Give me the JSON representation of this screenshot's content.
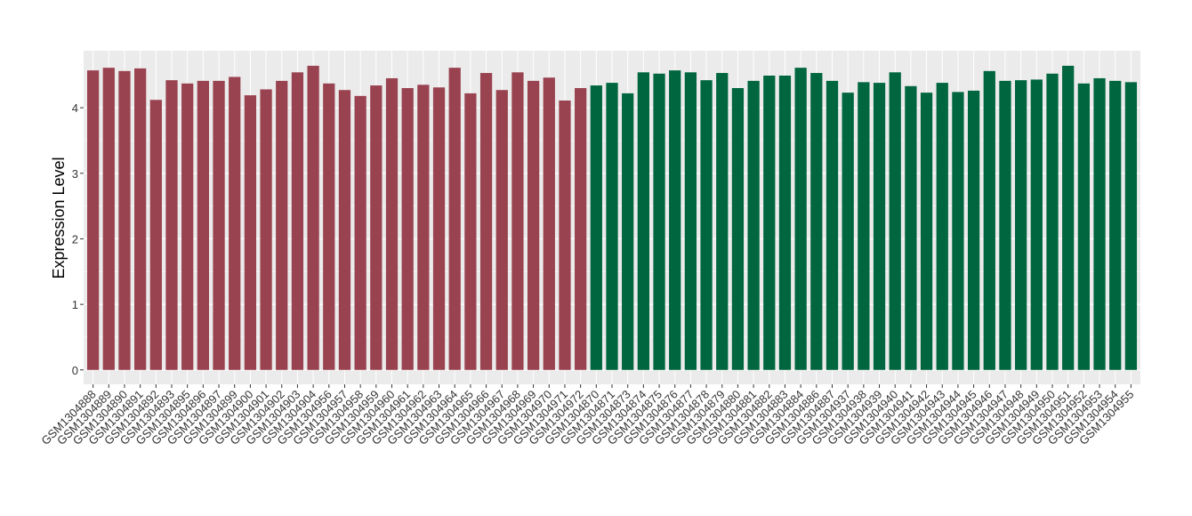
{
  "chart_data": {
    "type": "bar",
    "y_label": "Expression Level",
    "categories": [
      "GSM1304888",
      "GSM1304889",
      "GSM1304890",
      "GSM1304891",
      "GSM1304892",
      "GSM1304893",
      "GSM1304895",
      "GSM1304896",
      "GSM1304897",
      "GSM1304899",
      "GSM1304900",
      "GSM1304901",
      "GSM1304902",
      "GSM1304903",
      "GSM1304904",
      "GSM1304956",
      "GSM1304957",
      "GSM1304958",
      "GSM1304959",
      "GSM1304960",
      "GSM1304961",
      "GSM1304962",
      "GSM1304963",
      "GSM1304964",
      "GSM1304965",
      "GSM1304966",
      "GSM1304967",
      "GSM1304968",
      "GSM1304969",
      "GSM1304970",
      "GSM1304971",
      "GSM1304972",
      "GSM1304870",
      "GSM1304871",
      "GSM1304873",
      "GSM1304874",
      "GSM1304875",
      "GSM1304876",
      "GSM1304877",
      "GSM1304878",
      "GSM1304879",
      "GSM1304880",
      "GSM1304881",
      "GSM1304882",
      "GSM1304883",
      "GSM1304884",
      "GSM1304886",
      "GSM1304887",
      "GSM1304937",
      "GSM1304938",
      "GSM1304939",
      "GSM1304940",
      "GSM1304941",
      "GSM1304942",
      "GSM1304943",
      "GSM1304944",
      "GSM1304945",
      "GSM1304946",
      "GSM1304947",
      "GSM1304948",
      "GSM1304949",
      "GSM1304950",
      "GSM1304951",
      "GSM1304952",
      "GSM1304953",
      "GSM1304954",
      "GSM1304955"
    ],
    "series": [
      {
        "color": "#9a4350",
        "values": [
          4.57,
          4.61,
          4.56,
          4.6,
          4.12,
          4.42,
          4.37,
          4.41,
          4.41,
          4.47,
          4.19,
          4.28,
          4.41,
          4.54,
          4.64,
          4.37,
          4.27,
          4.18,
          4.34,
          4.45,
          4.3,
          4.35,
          4.31,
          4.61,
          4.22,
          4.53,
          4.27,
          4.54,
          4.41,
          4.46,
          4.11,
          4.3,
          null,
          null,
          null,
          null,
          null,
          null,
          null,
          null,
          null,
          null,
          null,
          null,
          null,
          null,
          null,
          null,
          null,
          null,
          null,
          null,
          null,
          null,
          null,
          null,
          null,
          null,
          null,
          null,
          null,
          null,
          null,
          null,
          null,
          null,
          null
        ]
      },
      {
        "color": "#00663f",
        "values": [
          null,
          null,
          null,
          null,
          null,
          null,
          null,
          null,
          null,
          null,
          null,
          null,
          null,
          null,
          null,
          null,
          null,
          null,
          null,
          null,
          null,
          null,
          null,
          null,
          null,
          null,
          null,
          null,
          null,
          null,
          null,
          null,
          4.34,
          4.38,
          4.22,
          4.54,
          4.52,
          4.57,
          4.54,
          4.42,
          4.53,
          4.3,
          4.41,
          4.49,
          4.49,
          4.61,
          4.53,
          4.41,
          4.23,
          4.39,
          4.38,
          4.54,
          4.33,
          4.23,
          4.38,
          4.24,
          4.26,
          4.56,
          4.41,
          4.42,
          4.43,
          4.52,
          4.64,
          4.37,
          4.45,
          4.41,
          4.39
        ]
      }
    ],
    "ylim": [
      -0.22,
      4.87
    ],
    "yticks": [
      0,
      1,
      2,
      3,
      4
    ],
    "grid": true
  }
}
